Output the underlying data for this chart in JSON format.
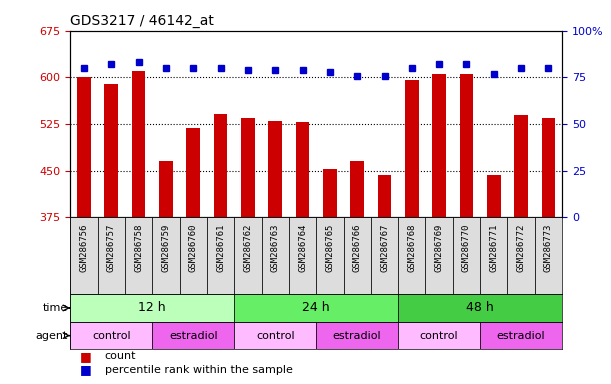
{
  "title": "GDS3217 / 46142_at",
  "samples": [
    "GSM286756",
    "GSM286757",
    "GSM286758",
    "GSM286759",
    "GSM286760",
    "GSM286761",
    "GSM286762",
    "GSM286763",
    "GSM286764",
    "GSM286765",
    "GSM286766",
    "GSM286767",
    "GSM286768",
    "GSM286769",
    "GSM286770",
    "GSM286771",
    "GSM286772",
    "GSM286773"
  ],
  "counts": [
    601,
    590,
    610,
    466,
    519,
    541,
    535,
    530,
    529,
    453,
    466,
    443,
    596,
    605,
    605,
    443,
    540,
    535
  ],
  "percentiles": [
    80,
    82,
    83,
    80,
    80,
    80,
    79,
    79,
    79,
    78,
    76,
    76,
    80,
    82,
    82,
    77,
    80,
    80
  ],
  "ylim_left": [
    375,
    675
  ],
  "ylim_right": [
    0,
    100
  ],
  "yticks_left": [
    375,
    450,
    525,
    600,
    675
  ],
  "yticks_right": [
    0,
    25,
    50,
    75,
    100
  ],
  "bar_color": "#cc0000",
  "dot_color": "#0000cc",
  "time_groups": [
    {
      "label": "12 h",
      "start": 0,
      "end": 6,
      "color": "#bbffbb"
    },
    {
      "label": "24 h",
      "start": 6,
      "end": 12,
      "color": "#66ee66"
    },
    {
      "label": "48 h",
      "start": 12,
      "end": 18,
      "color": "#44cc44"
    }
  ],
  "agent_groups": [
    {
      "label": "control",
      "start": 0,
      "end": 3,
      "color": "#ffbbff"
    },
    {
      "label": "estradiol",
      "start": 3,
      "end": 6,
      "color": "#ee66ee"
    },
    {
      "label": "control",
      "start": 6,
      "end": 9,
      "color": "#ffbbff"
    },
    {
      "label": "estradiol",
      "start": 9,
      "end": 12,
      "color": "#ee66ee"
    },
    {
      "label": "control",
      "start": 12,
      "end": 15,
      "color": "#ffbbff"
    },
    {
      "label": "estradiol",
      "start": 15,
      "end": 18,
      "color": "#ee66ee"
    }
  ],
  "legend_count_label": "count",
  "legend_pct_label": "percentile rank within the sample",
  "tick_label_color_left": "#cc0000",
  "tick_label_color_right": "#0000cc",
  "bar_width": 0.5,
  "background_color": "#ffffff",
  "sample_label_bg": "#dddddd",
  "n_samples": 18
}
